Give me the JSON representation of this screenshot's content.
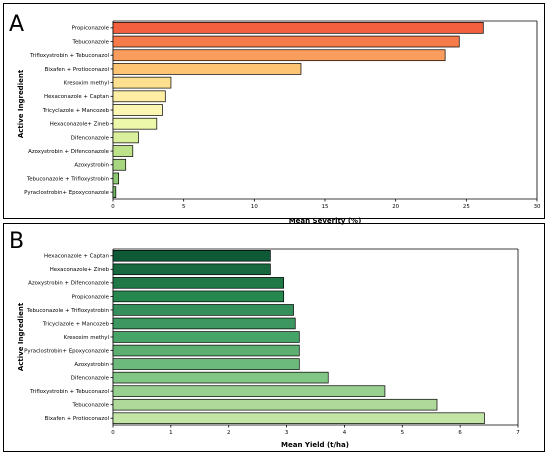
{
  "chart_data": [
    {
      "type": "bar",
      "orientation": "horizontal",
      "panel_label": "A",
      "xlabel": "Mean Severity (%)",
      "ylabel": "Active Ingredient",
      "xlim": [
        0,
        30
      ],
      "xticks": [
        0,
        5,
        10,
        15,
        20,
        25,
        30
      ],
      "grid": false,
      "categories": [
        "Propiconazole",
        "Tebuconazole",
        "Trifloxystrobin + Tebuconazol",
        "Bixafen + Protioconazol",
        "Kresoxim methyl",
        "Hexaconazole + Captan",
        "Tricyclazole + Mancozeb",
        "Hexaconazole+ Zineb",
        "Difenconazole",
        "Azoxystrobin + Difenconazole",
        "Azoxystrobin",
        "Tebuconazole + Trifloxystrobin",
        "Pyraclostrobin+ Epoxyconazole"
      ],
      "values": [
        26.2,
        24.5,
        23.5,
        13.3,
        4.1,
        3.7,
        3.5,
        3.1,
        1.8,
        1.4,
        0.9,
        0.4,
        0.2
      ],
      "colors": [
        "#f2603f",
        "#f57b4a",
        "#f99d5d",
        "#fcc473",
        "#fde08f",
        "#fdeea3",
        "#fbf7b3",
        "#eef8ab",
        "#d9ef9b",
        "#bde28a",
        "#a6d67f",
        "#8fc873",
        "#72b864"
      ]
    },
    {
      "type": "bar",
      "orientation": "horizontal",
      "panel_label": "B",
      "xlabel": "Mean Yield (t/ha)",
      "ylabel": "Active Ingredient",
      "xlim": [
        0,
        7
      ],
      "xticks": [
        0,
        1,
        2,
        3,
        4,
        5,
        6,
        7
      ],
      "grid": false,
      "categories": [
        "Hexaconazole + Captan",
        "Hexaconazole+ Zineb",
        "Azoxystrobin + Difenconazole",
        "Propiconazole",
        "Tebuconazole + Trifloxystrobin",
        "Tricyclazole + Mancozeb",
        "Kresoxim methyl",
        "Pyraclostrobin+ Epoxyconazole",
        "Azoxystrobin",
        "Difenconazole",
        "Trifloxystrobin + Tebuconazol",
        "Tebuconazole",
        "Bixafen + Protioconazol"
      ],
      "values": [
        2.72,
        2.72,
        2.95,
        2.95,
        3.12,
        3.15,
        3.22,
        3.22,
        3.22,
        3.72,
        4.7,
        5.6,
        6.42
      ],
      "colors": [
        "#0e5a36",
        "#17683e",
        "#1f7846",
        "#26884f",
        "#348f5a",
        "#3d9760",
        "#46a566",
        "#5caf70",
        "#6dbb7c",
        "#82c686",
        "#98d18f",
        "#aed99a",
        "#c3e6a7"
      ]
    }
  ]
}
